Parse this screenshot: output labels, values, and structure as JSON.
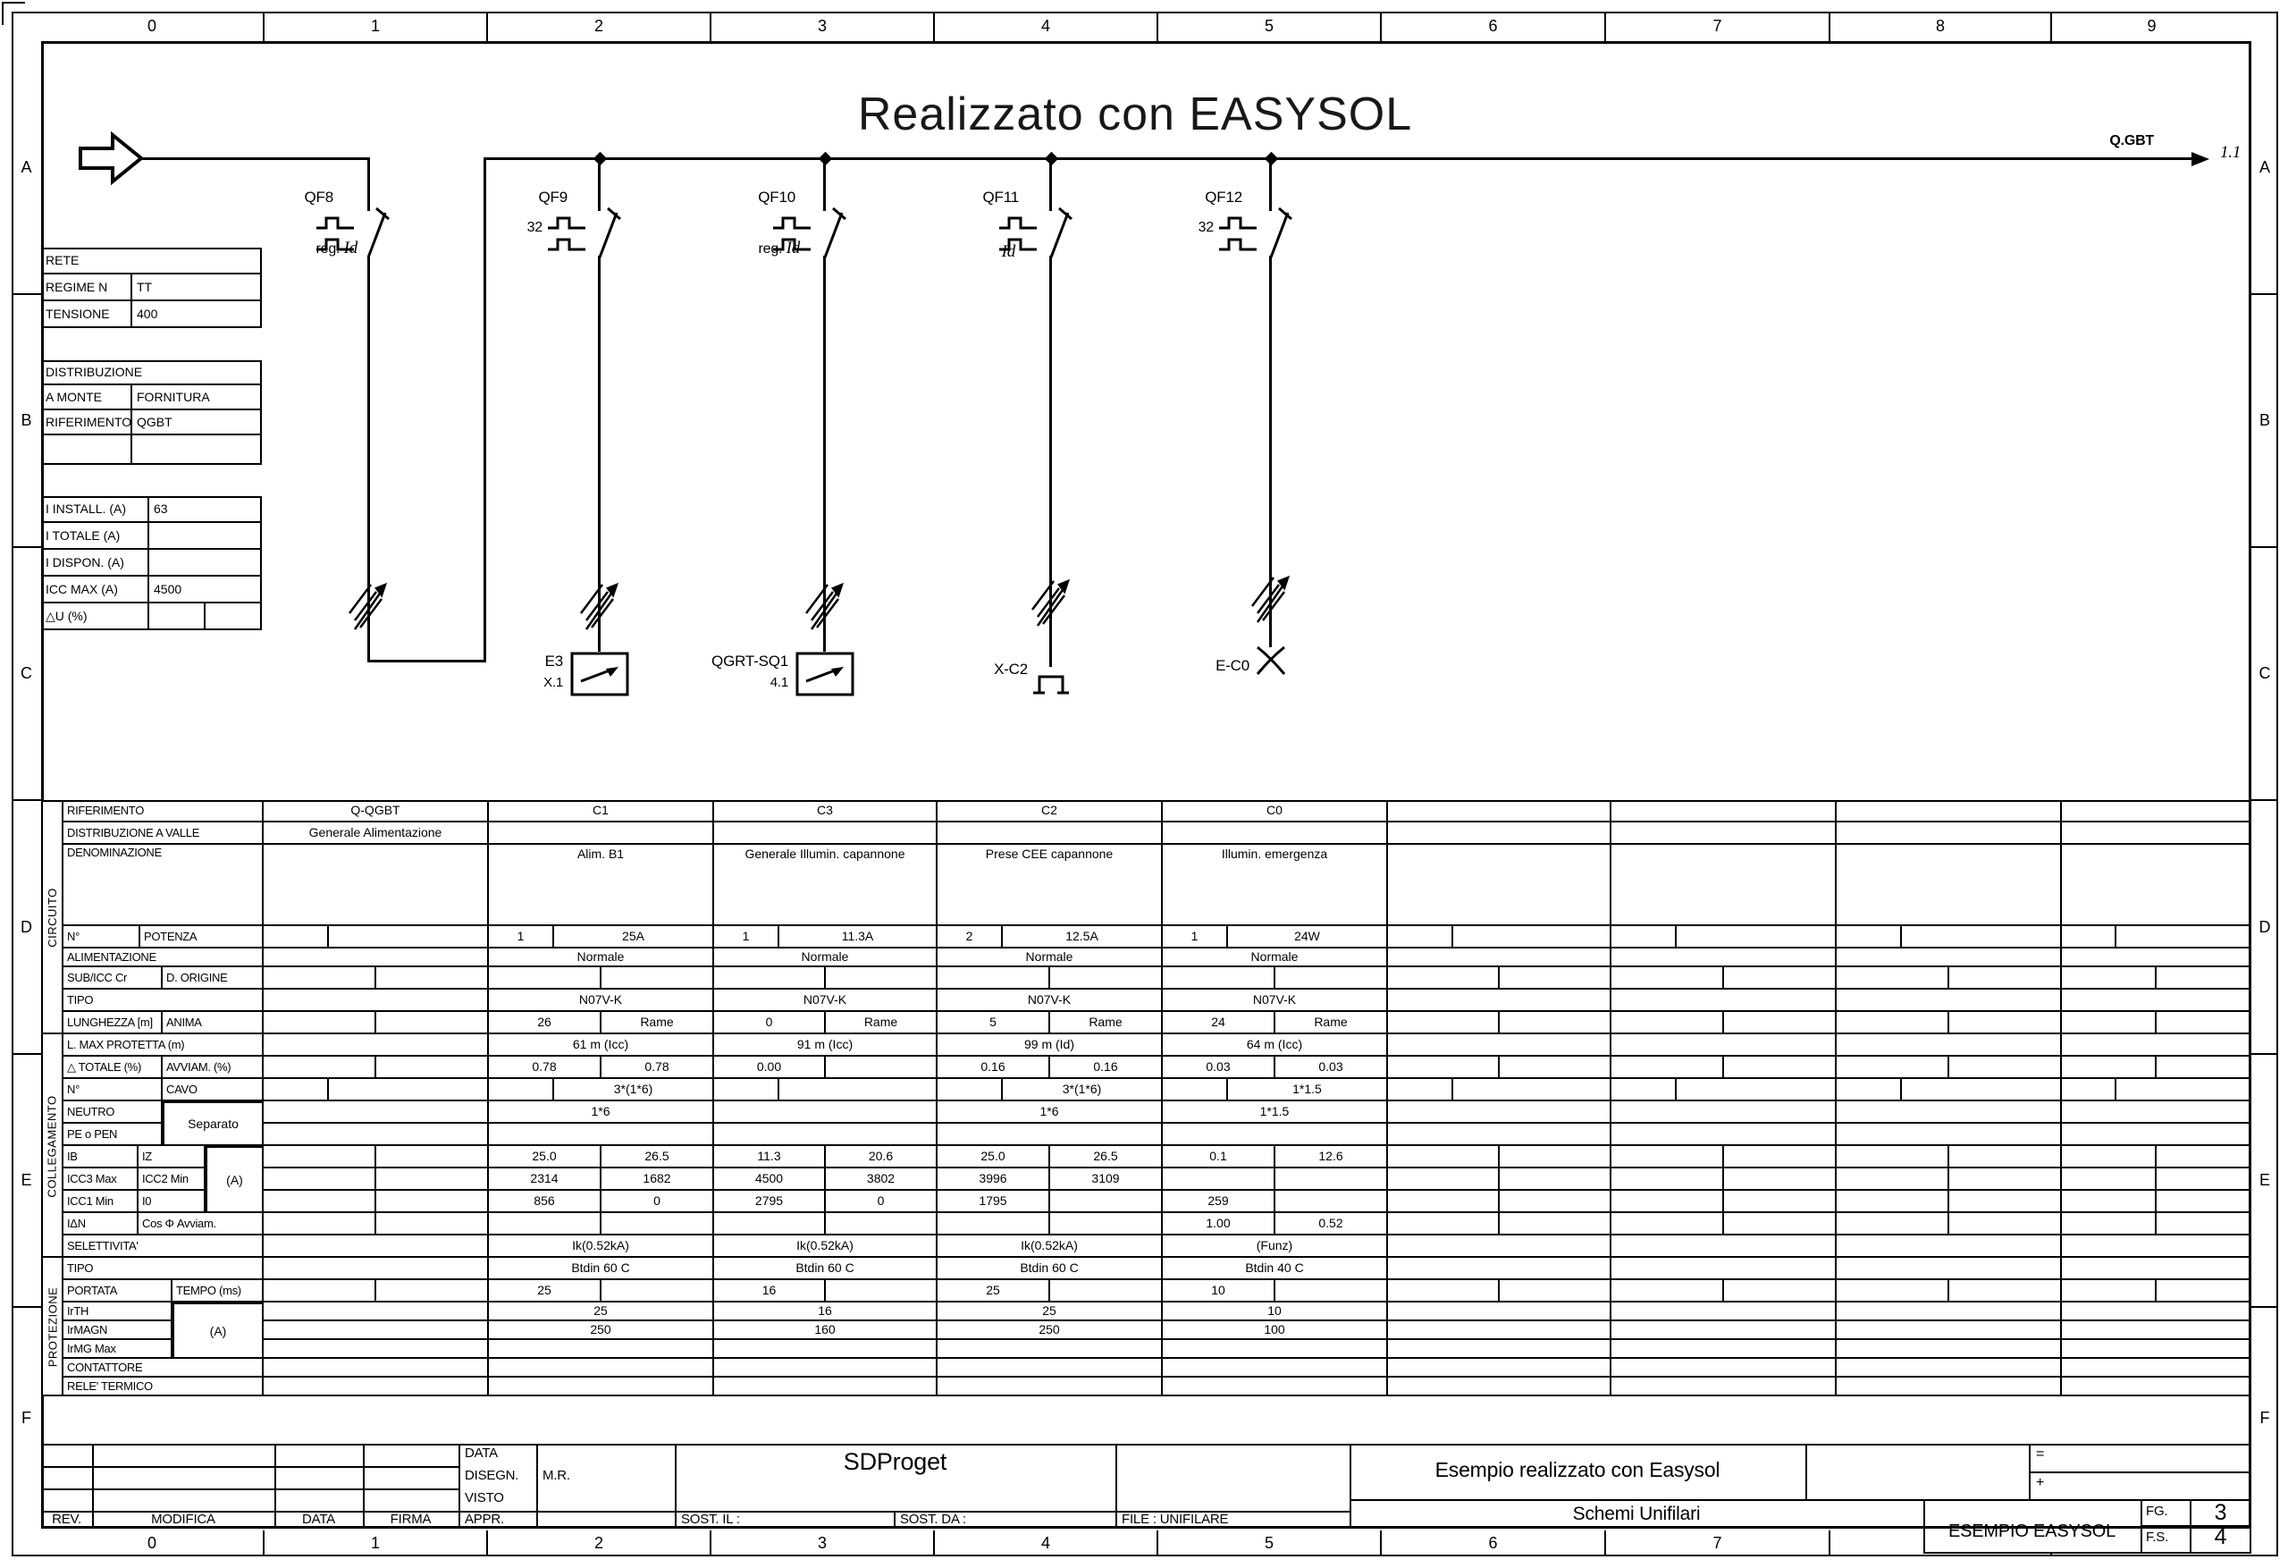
{
  "page": {
    "title": "Realizzato con EASYSOL",
    "ruler_columns": [
      "0",
      "1",
      "2",
      "3",
      "4",
      "5",
      "6",
      "7",
      "8",
      "9"
    ],
    "ruler_rows": [
      "A",
      "B",
      "C",
      "D",
      "E",
      "F"
    ]
  },
  "network": {
    "rete": {
      "header": "RETE",
      "rows": [
        {
          "label": "REGIME N",
          "value": "TT"
        },
        {
          "label": "TENSIONE",
          "value": "400"
        }
      ]
    },
    "distribuzione": {
      "header": "DISTRIBUZIONE",
      "rows": [
        {
          "label": "A MONTE",
          "value": "FORNITURA"
        },
        {
          "label": "RIFERIMENTO",
          "value": "QGBT"
        },
        {
          "label": "",
          "value": ""
        }
      ]
    },
    "correnti": {
      "rows": [
        {
          "label": "I INSTALL. (A)",
          "value": "63"
        },
        {
          "label": "I TOTALE (A)",
          "value": ""
        },
        {
          "label": "I DISPON. (A)",
          "value": ""
        },
        {
          "label": "ICC MAX (A)",
          "value": "4500"
        },
        {
          "label": "△U (%)",
          "value": ""
        }
      ]
    }
  },
  "schematic": {
    "bus_label": "Q.GBT",
    "continuation_ref": "1.1",
    "breakers": [
      {
        "name": "QF8",
        "rating": "reg.",
        "id": "Id"
      },
      {
        "name": "QF9",
        "rating": "32",
        "id": ""
      },
      {
        "name": "QF10",
        "rating": "reg.",
        "id": "Id"
      },
      {
        "name": "QF11",
        "rating": "",
        "id": "Id"
      },
      {
        "name": "QF12",
        "rating": "32",
        "id": ""
      }
    ],
    "loads": [
      {
        "label": "E3",
        "ref": "X.1"
      },
      {
        "label": "QGRT-SQ1",
        "ref": "4.1"
      },
      {
        "label": "X-C2",
        "ref": ""
      },
      {
        "label": "E-C0",
        "ref": ""
      }
    ]
  },
  "circuit_table": {
    "side_labels": [
      "CIRCUITO",
      "COLLEGAMENTO",
      "PROTEZIONE"
    ],
    "merged": {
      "neutro_pe": "Separato",
      "icc_unit": "(A)",
      "ir_unit": "(A)"
    },
    "rows": [
      {
        "label": "RIFERIMENTO",
        "values": [
          "Q-QGBT",
          "C1",
          "C3",
          "C2",
          "C0",
          "",
          "",
          "",
          ""
        ]
      },
      {
        "label": "DISTRIBUZIONE A VALLE",
        "values": [
          "Generale Alimentazione",
          "",
          "",
          "",
          "",
          "",
          "",
          "",
          ""
        ]
      },
      {
        "label": "DENOMINAZIONE",
        "values": [
          "",
          "Alim. B1",
          "Generale Illumin. capannone",
          "Prese CEE capannone",
          "Illumin. emergenza",
          "",
          "",
          "",
          ""
        ]
      },
      {
        "label": [
          "N°",
          "POTENZA"
        ],
        "values": [
          [
            "",
            ""
          ],
          [
            "1",
            "25A"
          ],
          [
            "1",
            "11.3A"
          ],
          [
            "2",
            "12.5A"
          ],
          [
            "1",
            "24W"
          ],
          [
            "",
            ""
          ],
          [
            "",
            ""
          ],
          [
            "",
            ""
          ],
          [
            "",
            ""
          ]
        ]
      },
      {
        "label": "ALIMENTAZIONE",
        "values": [
          "",
          "Normale",
          "Normale",
          "Normale",
          "Normale",
          "",
          "",
          "",
          ""
        ]
      },
      {
        "label": [
          "SUB/ICC Cr",
          "D. ORIGINE"
        ],
        "values": [
          [
            "",
            ""
          ],
          [
            "",
            ""
          ],
          [
            "",
            ""
          ],
          [
            "",
            ""
          ],
          [
            "",
            ""
          ],
          [
            "",
            ""
          ],
          [
            "",
            ""
          ],
          [
            "",
            ""
          ],
          [
            "",
            ""
          ]
        ]
      },
      {
        "label": "TIPO",
        "values": [
          "",
          "N07V-K",
          "N07V-K",
          "N07V-K",
          "N07V-K",
          "",
          "",
          "",
          ""
        ]
      },
      {
        "label": [
          "LUNGHEZZA [m]",
          "ANIMA"
        ],
        "values": [
          [
            "",
            ""
          ],
          [
            "26",
            "Rame"
          ],
          [
            "0",
            "Rame"
          ],
          [
            "5",
            "Rame"
          ],
          [
            "24",
            "Rame"
          ],
          [
            "",
            ""
          ],
          [
            "",
            ""
          ],
          [
            "",
            ""
          ],
          [
            "",
            ""
          ]
        ]
      },
      {
        "label": "L. MAX PROTETTA (m)",
        "values": [
          "",
          "61 m (Icc)",
          "91 m (Icc)",
          "99 m (Id)",
          "64 m (Icc)",
          "",
          "",
          "",
          ""
        ]
      },
      {
        "label": [
          "△ TOTALE (%)",
          "AVVIAM. (%)"
        ],
        "values": [
          [
            "",
            ""
          ],
          [
            "0.78",
            "0.78"
          ],
          [
            "0.00",
            ""
          ],
          [
            "0.16",
            "0.16"
          ],
          [
            "0.03",
            "0.03"
          ],
          [
            "",
            ""
          ],
          [
            "",
            ""
          ],
          [
            "",
            ""
          ],
          [
            "",
            ""
          ]
        ]
      },
      {
        "label": [
          "N°",
          "CAVO"
        ],
        "values": [
          [
            "",
            ""
          ],
          [
            "",
            "3*(1*6)"
          ],
          [
            "",
            ""
          ],
          [
            "",
            "3*(1*6)"
          ],
          [
            "",
            "1*1.5"
          ],
          [
            "",
            ""
          ],
          [
            "",
            ""
          ],
          [
            "",
            ""
          ],
          [
            "",
            ""
          ]
        ]
      },
      {
        "label": "NEUTRO",
        "values": [
          "",
          "1*6",
          "",
          "1*6",
          "1*1.5",
          "",
          "",
          "",
          ""
        ]
      },
      {
        "label": "PE o PEN",
        "values": [
          "",
          "",
          "",
          "",
          "",
          "",
          "",
          "",
          ""
        ]
      },
      {
        "label": [
          "IB",
          "IZ"
        ],
        "values": [
          [
            "",
            ""
          ],
          [
            "25.0",
            "26.5"
          ],
          [
            "11.3",
            "20.6"
          ],
          [
            "25.0",
            "26.5"
          ],
          [
            "0.1",
            "12.6"
          ],
          [
            "",
            ""
          ],
          [
            "",
            ""
          ],
          [
            "",
            ""
          ],
          [
            "",
            ""
          ]
        ]
      },
      {
        "label": [
          "ICC3 Max",
          "ICC2 Min"
        ],
        "values": [
          [
            "",
            ""
          ],
          [
            "2314",
            "1682"
          ],
          [
            "4500",
            "3802"
          ],
          [
            "3996",
            "3109"
          ],
          [
            "",
            ""
          ],
          [
            "",
            ""
          ],
          [
            "",
            ""
          ],
          [
            "",
            ""
          ],
          [
            "",
            ""
          ]
        ]
      },
      {
        "label": [
          "ICC1 Min",
          "I0"
        ],
        "values": [
          [
            "",
            ""
          ],
          [
            "856",
            "0"
          ],
          [
            "2795",
            "0"
          ],
          [
            "1795",
            ""
          ],
          [
            "259",
            ""
          ],
          [
            "",
            ""
          ],
          [
            "",
            ""
          ],
          [
            "",
            ""
          ],
          [
            "",
            ""
          ]
        ]
      },
      {
        "label": [
          "IΔN",
          "Cos Φ Avviam."
        ],
        "values": [
          [
            "",
            ""
          ],
          [
            "",
            ""
          ],
          [
            "",
            ""
          ],
          [
            "",
            ""
          ],
          [
            "1.00",
            "0.52"
          ],
          [
            "",
            ""
          ],
          [
            "",
            ""
          ],
          [
            "",
            ""
          ],
          [
            "",
            ""
          ]
        ]
      },
      {
        "label": "SELETTIVITA'",
        "values": [
          "",
          "Ik(0.52kA)",
          "Ik(0.52kA)",
          "Ik(0.52kA)",
          "(Funz)",
          "",
          "",
          "",
          ""
        ]
      },
      {
        "label": "TIPO",
        "values": [
          "",
          "Btdin 60 C",
          "Btdin 60 C",
          "Btdin 60 C",
          "Btdin 40 C",
          "",
          "",
          "",
          ""
        ]
      },
      {
        "label": [
          "PORTATA",
          "TEMPO (ms)"
        ],
        "values": [
          [
            "",
            ""
          ],
          [
            "25",
            ""
          ],
          [
            "16",
            ""
          ],
          [
            "25",
            ""
          ],
          [
            "10",
            ""
          ],
          [
            "",
            ""
          ],
          [
            "",
            ""
          ],
          [
            "",
            ""
          ],
          [
            "",
            ""
          ]
        ]
      },
      {
        "label": "IrTH",
        "values": [
          "",
          "25",
          "16",
          "25",
          "10",
          "",
          "",
          "",
          ""
        ]
      },
      {
        "label": "IrMAGN",
        "values": [
          "",
          "250",
          "160",
          "250",
          "100",
          "",
          "",
          "",
          ""
        ]
      },
      {
        "label": "IrMG Max",
        "values": [
          "",
          "",
          "",
          "",
          "",
          "",
          "",
          "",
          ""
        ]
      },
      {
        "label": "CONTATTORE",
        "values": [
          "",
          "",
          "",
          "",
          "",
          "",
          "",
          "",
          ""
        ]
      },
      {
        "label": "RELE' TERMICO",
        "values": [
          "",
          "",
          "",
          "",
          "",
          "",
          "",
          "",
          ""
        ]
      }
    ]
  },
  "title_block": {
    "rev_header": [
      "REV.",
      "MODIFICA",
      "DATA",
      "FIRMA"
    ],
    "sign_rows": [
      {
        "label": "DATA",
        "value": ""
      },
      {
        "label": "DISEGN.",
        "value": "M.R."
      },
      {
        "label": "VISTO",
        "value": ""
      },
      {
        "label": "APPR.",
        "value": ""
      }
    ],
    "company": "SDProget",
    "sost_il": "SOST. IL :",
    "sost_da": "SOST. DA :",
    "file": "FILE : UNIFILARE",
    "project_title": "Esempio realizzato con Easysol",
    "project_subtitle": "Schemi Unifilari",
    "drawing_name": "ESEMPIO  EASYSOL",
    "eq": "=",
    "plus": "+",
    "fg_label": "FG.",
    "fg_value": "3",
    "fs_label": "F.S.",
    "fs_value": "4"
  }
}
